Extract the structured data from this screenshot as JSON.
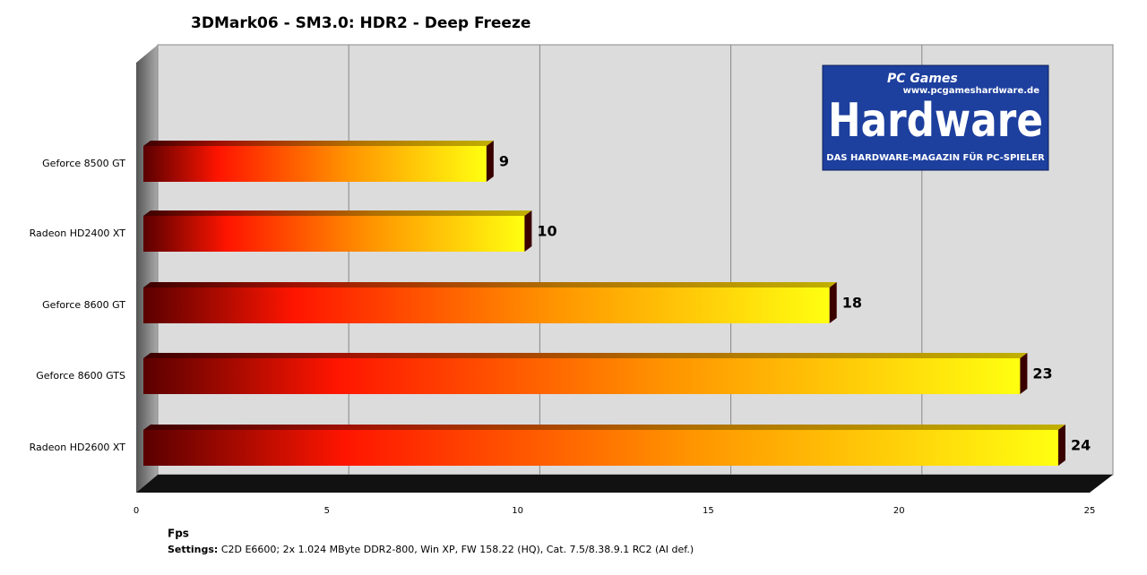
{
  "chart_data": {
    "type": "bar3d",
    "orientation": "horizontal",
    "title": "3DMark06 - SM3.0: HDR2 - Deep Freeze",
    "categories": [
      "Geforce 8500 GT",
      "Radeon HD2400 XT",
      "Geforce 8600 GT",
      "Geforce 8600 GTS",
      "Radeon HD2600 XT"
    ],
    "values": [
      9,
      10,
      18,
      23,
      24
    ],
    "xlim": [
      0,
      25
    ],
    "xticks": [
      0,
      5,
      10,
      15,
      20,
      25
    ],
    "grid": true,
    "x_label": "Fps",
    "note_label": "Settings:",
    "note": "C2D E6600; 2x 1.024 MByte DDR2-800, Win XP, FW 158.22 (HQ), Cat. 7.5/8.38.9.1 RC2 (AI def.)",
    "logo": {
      "brand": "PC Games",
      "name": "Hardware",
      "url": "www.pcgameshardware.de",
      "tagline": "DAS HARDWARE-MAGAZIN FÜR PC-SPIELER"
    }
  }
}
